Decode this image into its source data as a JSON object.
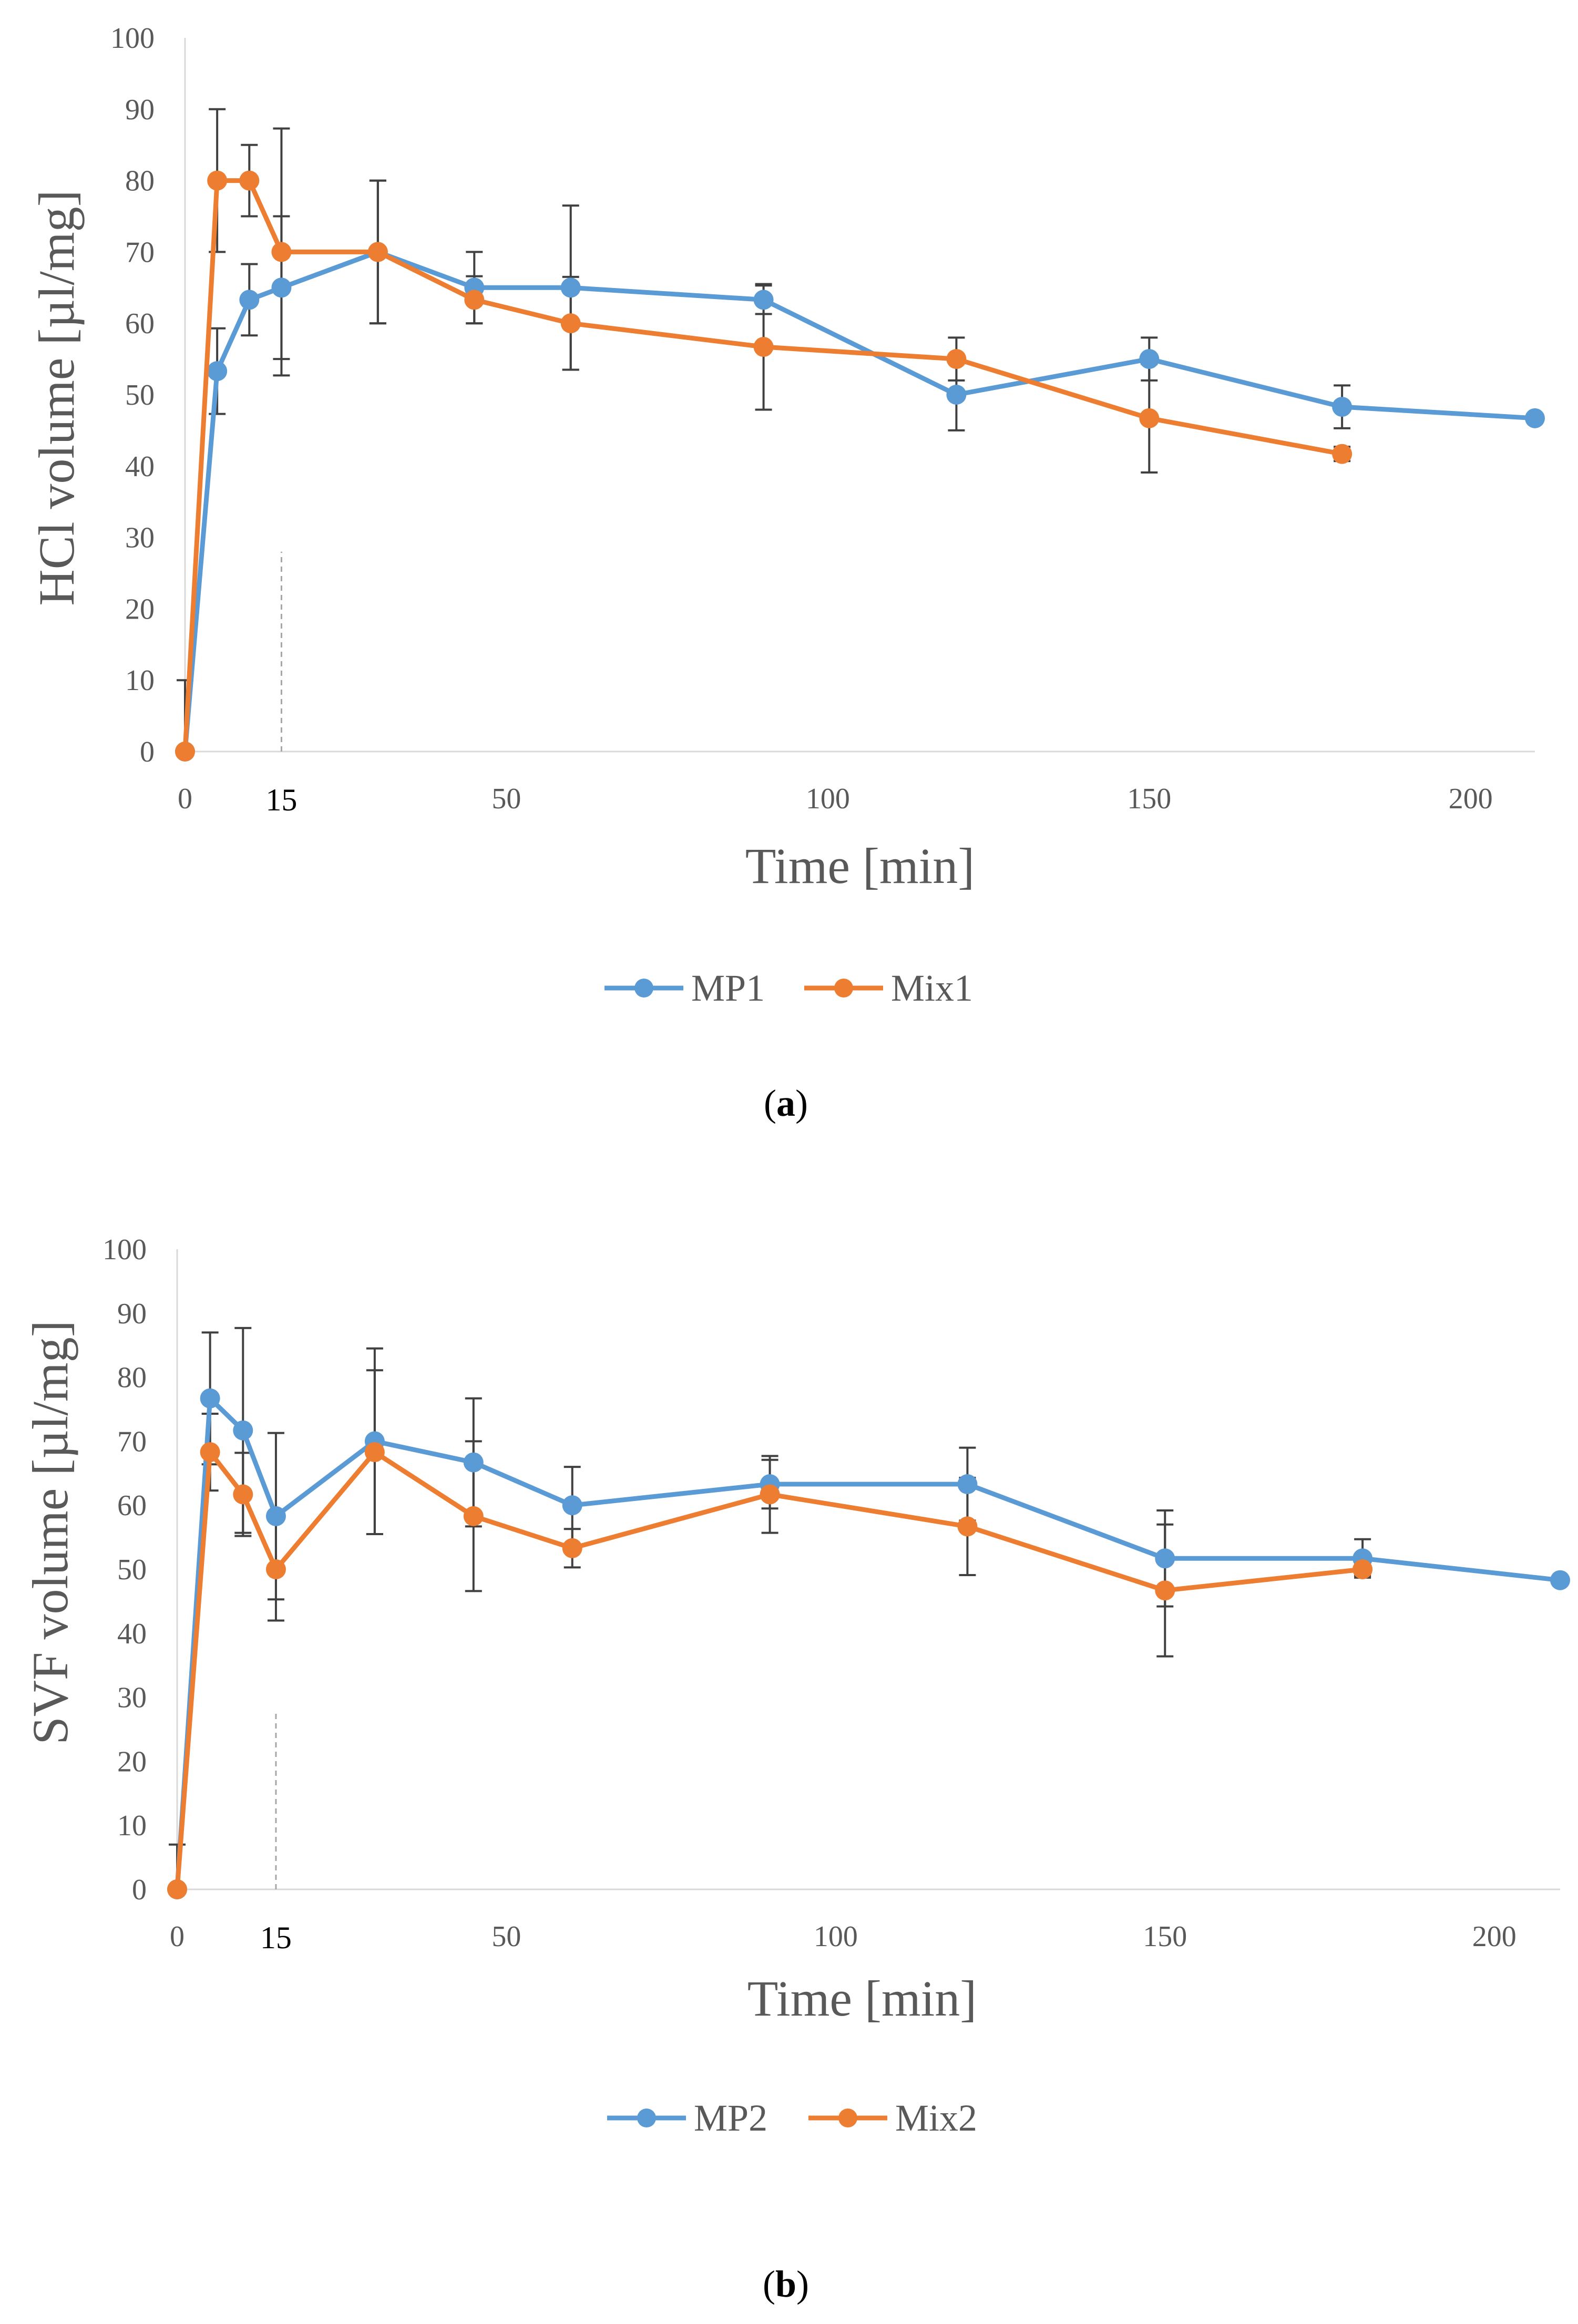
{
  "chart_data": [
    {
      "type": "line",
      "panel_label": "a",
      "xlabel": "Time [min]",
      "ylabel": "HCl volume [µl/mg]",
      "xlim": [
        0,
        210
      ],
      "ylim": [
        0,
        100
      ],
      "y_ticks": [
        0,
        10,
        20,
        30,
        40,
        50,
        60,
        70,
        80,
        90,
        100
      ],
      "x_ticks": [
        0,
        50,
        100,
        150,
        200
      ],
      "x_marker": 15,
      "x_marker_label": "15",
      "grid": false,
      "legend": "bottom",
      "series": [
        {
          "name": "MP1",
          "color": "#5b9bd5",
          "x": [
            0,
            5,
            10,
            15,
            30,
            45,
            60,
            90,
            120,
            150,
            180,
            210
          ],
          "y": [
            0,
            53.3,
            63.3,
            65,
            70,
            65,
            65,
            63.3,
            50,
            55,
            48.3,
            46.7
          ],
          "err": [
            10,
            6,
            5,
            10,
            10,
            5,
            11.5,
            2,
            5,
            3,
            3,
            0
          ]
        },
        {
          "name": "Mix1",
          "color": "#ed7d31",
          "x": [
            0,
            5,
            10,
            15,
            30,
            45,
            60,
            90,
            120,
            150,
            180
          ],
          "y": [
            0,
            80,
            80,
            70,
            70,
            63.3,
            60,
            56.7,
            55,
            46.7,
            41.7
          ],
          "err": [
            0,
            10,
            5,
            17.3,
            10,
            3.3,
            6.5,
            8.8,
            3,
            7.6,
            1
          ]
        }
      ]
    },
    {
      "type": "line",
      "panel_label": "b",
      "xlabel": "Time [min]",
      "ylabel": "SVF volume [µl/mg]",
      "xlim": [
        0,
        210
      ],
      "ylim": [
        0,
        100
      ],
      "y_ticks": [
        0,
        10,
        20,
        30,
        40,
        50,
        60,
        70,
        80,
        90,
        100
      ],
      "x_ticks": [
        0,
        50,
        100,
        150,
        200
      ],
      "x_marker": 15,
      "x_marker_label": "15",
      "grid": false,
      "legend": "bottom",
      "series": [
        {
          "name": "MP2",
          "color": "#5b9bd5",
          "x": [
            0,
            5,
            10,
            15,
            30,
            45,
            60,
            90,
            120,
            150,
            180,
            210
          ],
          "y": [
            0,
            76.7,
            71.7,
            58.3,
            70,
            66.7,
            60,
            63.3,
            63.3,
            51.7,
            51.7,
            48.3
          ],
          "err": [
            7,
            10.3,
            16,
            13,
            14.5,
            10,
            6,
            3.8,
            5.7,
            7.5,
            3,
            0
          ]
        },
        {
          "name": "Mix2",
          "color": "#ed7d31",
          "x": [
            0,
            5,
            10,
            15,
            30,
            45,
            60,
            90,
            120,
            150,
            180
          ],
          "y": [
            0,
            68.3,
            61.7,
            50,
            68.3,
            58.3,
            53.3,
            61.7,
            56.7,
            46.7,
            50
          ],
          "err": [
            0,
            6,
            6.5,
            8,
            12.8,
            11.7,
            3,
            6,
            7.6,
            10.3,
            1
          ]
        }
      ]
    }
  ]
}
